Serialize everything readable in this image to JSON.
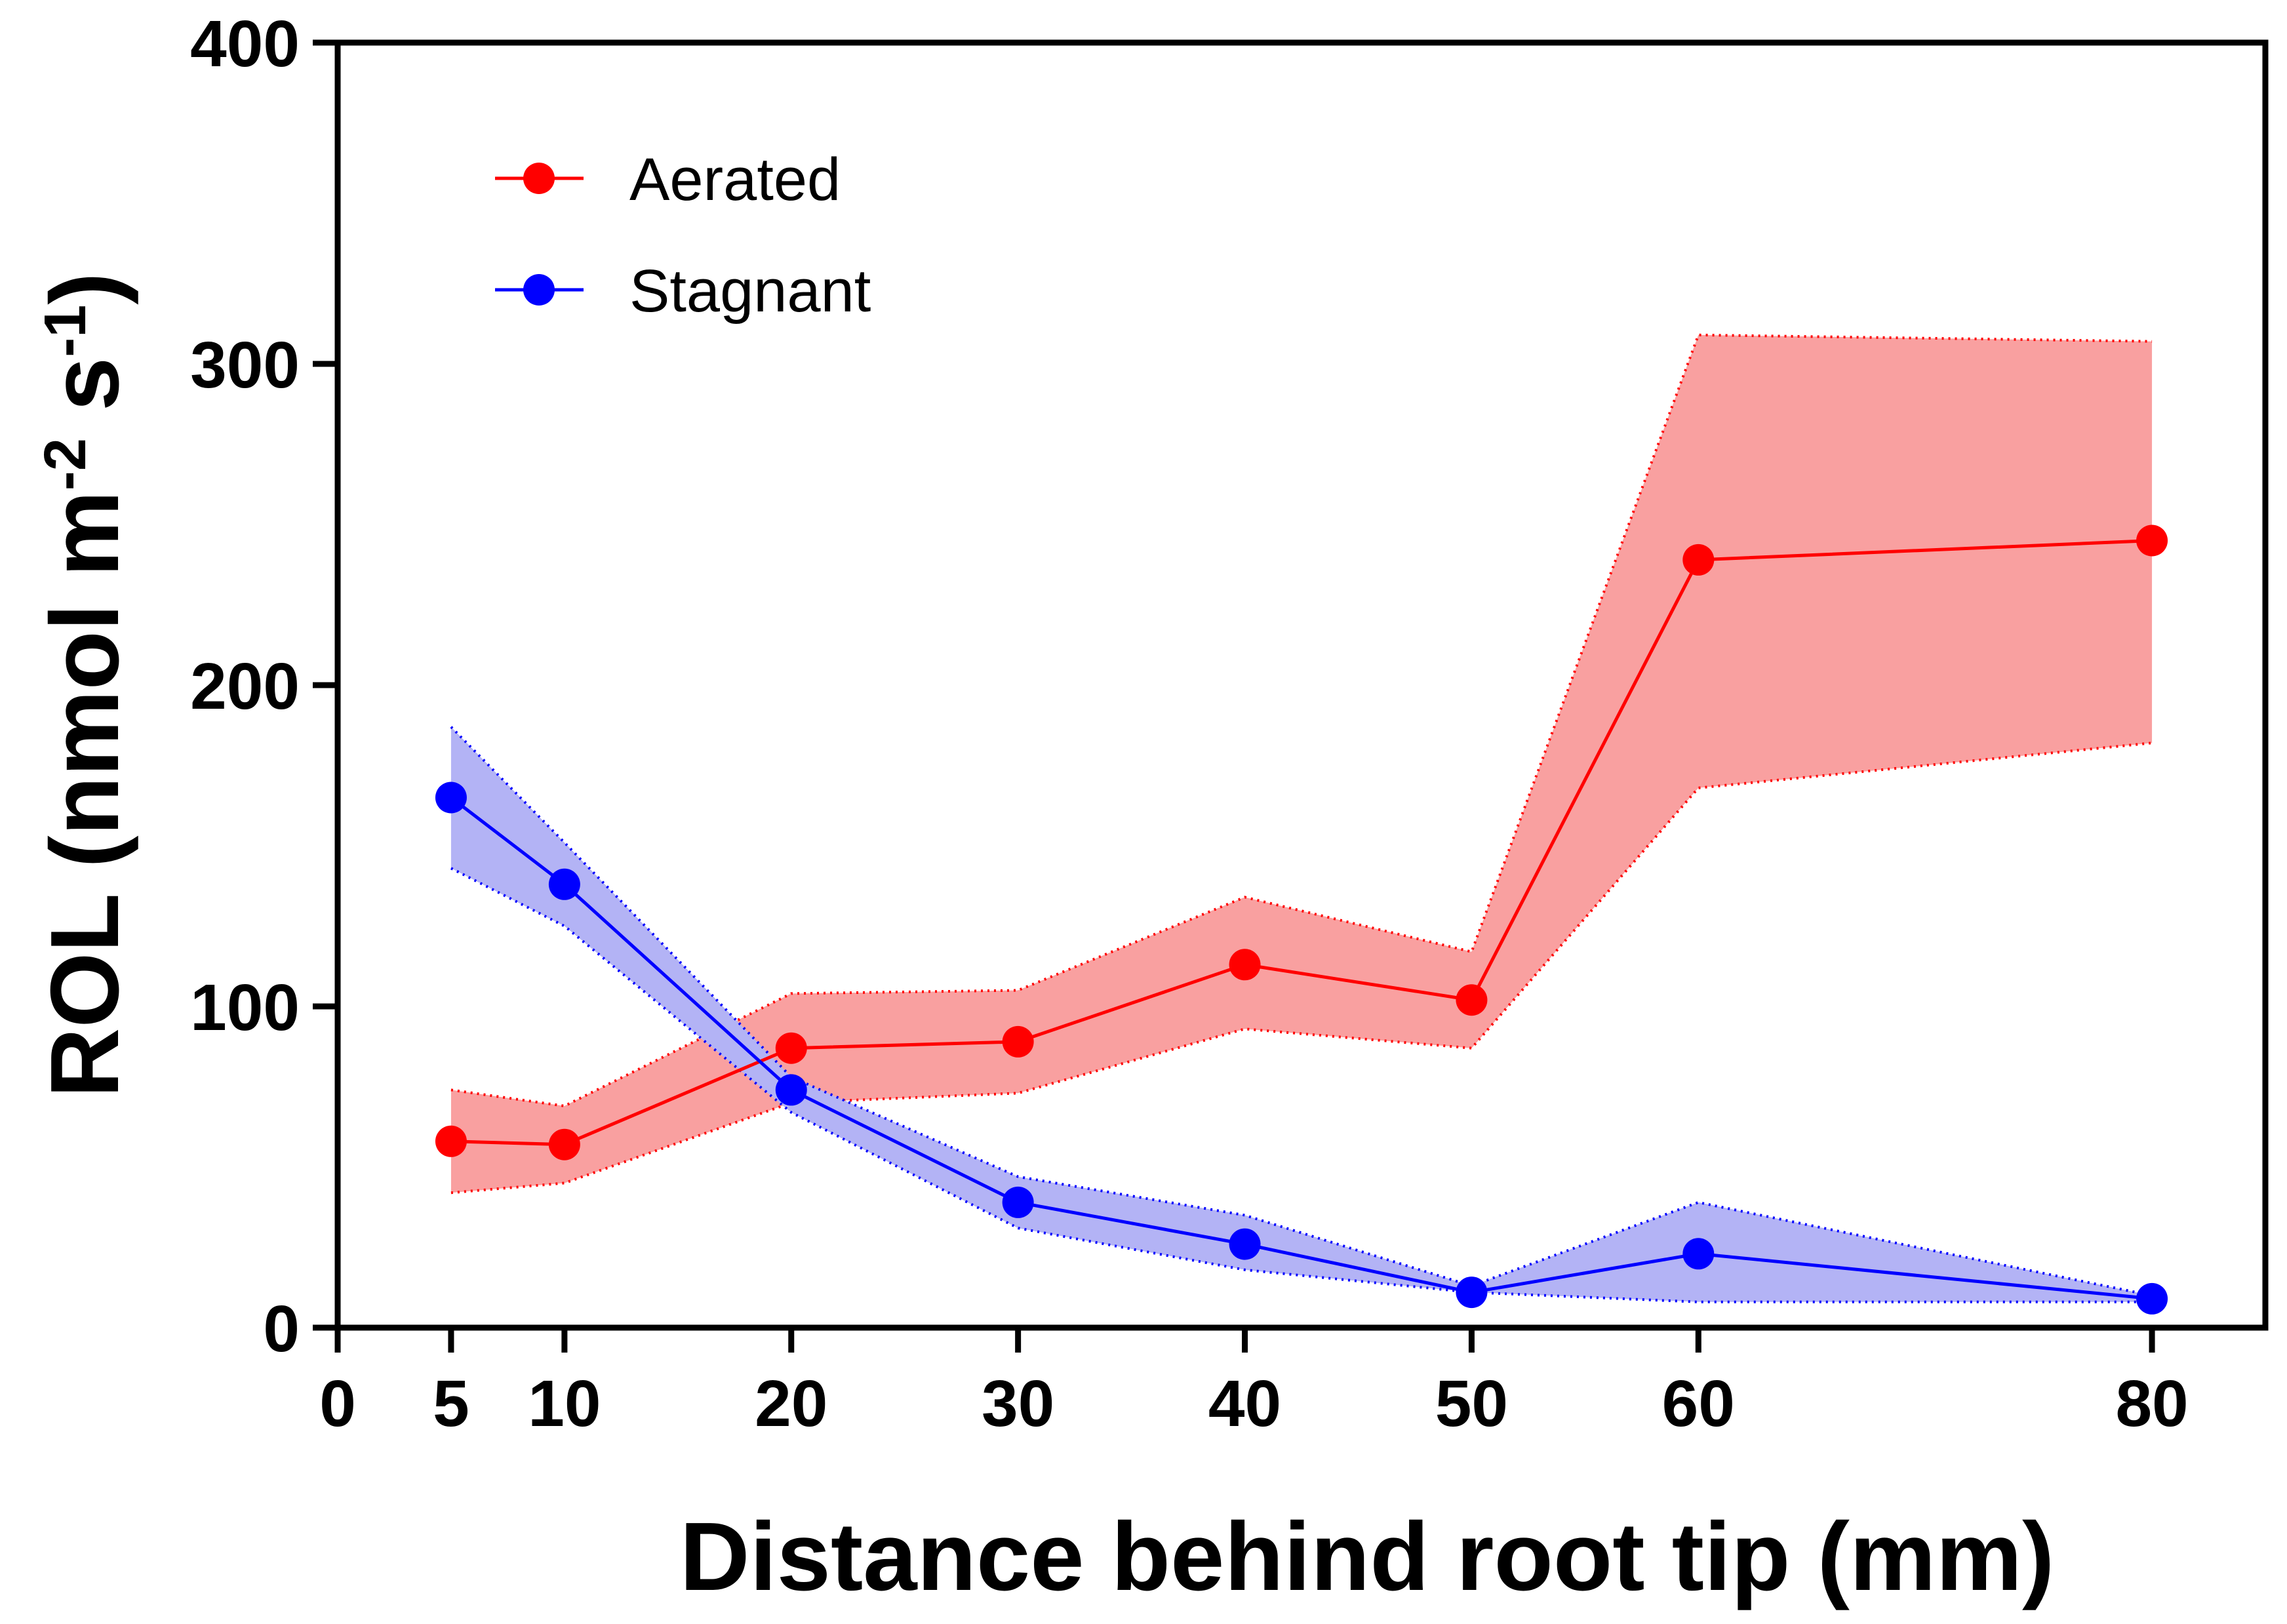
{
  "chart_data": {
    "type": "line",
    "title": "",
    "xlabel": "Distance behind root tip (mm)",
    "ylabel_parts": {
      "prefix": "ROL (nmol m",
      "sup1": "-2",
      "middle": " s",
      "sup2": "-1",
      "suffix": ")"
    },
    "xlim": [
      0,
      85
    ],
    "ylim": [
      0,
      400
    ],
    "x_ticks": [
      0,
      5,
      10,
      20,
      30,
      40,
      50,
      60,
      80
    ],
    "y_ticks": [
      0,
      100,
      200,
      300,
      400
    ],
    "x": [
      5,
      10,
      20,
      30,
      40,
      50,
      60,
      80
    ],
    "series": [
      {
        "name": "Aerated",
        "color": "#ff0000",
        "band_color": "#f9a0a0",
        "values": [
          58,
          57,
          87,
          89,
          113,
          102,
          239,
          245
        ],
        "upper": [
          74,
          69,
          104,
          105,
          134,
          117,
          309,
          307
        ],
        "lower": [
          42,
          45,
          70,
          73,
          93,
          87,
          168,
          182
        ]
      },
      {
        "name": "Stagnant",
        "color": "#0000ff",
        "band_color": "#b3b3f5",
        "values": [
          165,
          138,
          74,
          39,
          26,
          11,
          23,
          9
        ],
        "upper": [
          187,
          151,
          78,
          47,
          35,
          13,
          39,
          10
        ],
        "lower": [
          143,
          125,
          67,
          31,
          18,
          11,
          8,
          8
        ]
      }
    ],
    "legend_position": "top-left",
    "grid": false
  }
}
